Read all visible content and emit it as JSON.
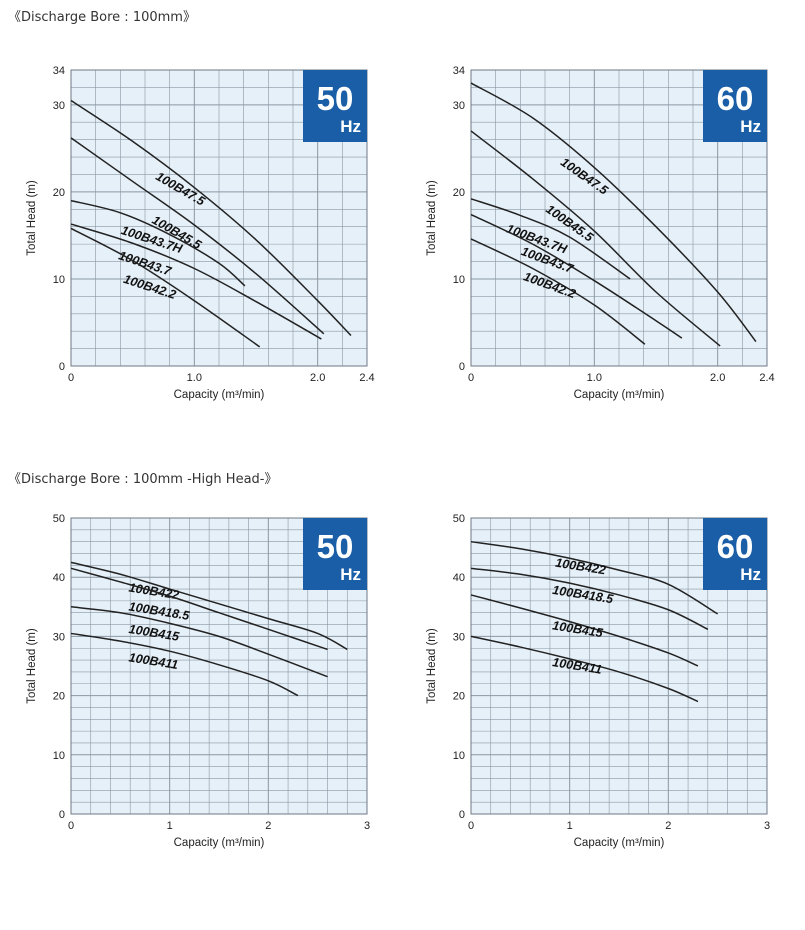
{
  "sections": [
    {
      "title": "《Discharge Bore : 100mm》"
    },
    {
      "title": "《Discharge Bore : 100mm -High Head-》"
    }
  ],
  "colors": {
    "plot_bg": "#e6f0f8",
    "grid": "#8a97a3",
    "badge": "#1a5ea8",
    "curve": "#222222"
  },
  "chart_data": [
    {
      "type": "line",
      "badge": {
        "number": "50",
        "unit": "Hz"
      },
      "xlabel": "Capacity (m³/min)",
      "ylabel": "Total Head (m)",
      "xlim": [
        0,
        2.4
      ],
      "ylim": [
        0,
        34
      ],
      "x_ticks": [
        "0",
        "1.0",
        "2.0",
        "2.4"
      ],
      "x_tick_values": [
        0,
        1.0,
        2.0,
        2.4
      ],
      "y_ticks": [
        "0",
        "10",
        "20",
        "30",
        "34"
      ],
      "y_tick_values": [
        0,
        10,
        20,
        30,
        34
      ],
      "grid": true,
      "x_minor": 0.2,
      "y_minor": 2,
      "series": [
        {
          "name": "100B47.5",
          "points": [
            [
              0,
              30.5
            ],
            [
              0.5,
              25.8
            ],
            [
              1.0,
              20.5
            ],
            [
              1.5,
              14.5
            ],
            [
              2.0,
              7.5
            ],
            [
              2.27,
              3.5
            ]
          ],
          "label_at": [
            0.68,
            21.5
          ],
          "label_rot": 30
        },
        {
          "name": "100B45.5",
          "points": [
            [
              0,
              26.2
            ],
            [
              0.5,
              21.2
            ],
            [
              1.0,
              16.2
            ],
            [
              1.5,
              10.6
            ],
            [
              2.05,
              3.7
            ]
          ],
          "label_at": [
            0.65,
            16.5
          ],
          "label_rot": 30
        },
        {
          "name": "100B43.7H",
          "points": [
            [
              0,
              19.0
            ],
            [
              0.4,
              17.6
            ],
            [
              0.8,
              15.1
            ],
            [
              1.2,
              11.8
            ],
            [
              1.41,
              9.2
            ]
          ],
          "label_at": [
            0.4,
            15.2
          ],
          "label_rot": 18
        },
        {
          "name": "100B43.7",
          "points": [
            [
              0,
              16.3
            ],
            [
              0.5,
              14.1
            ],
            [
              1.0,
              11.2
            ],
            [
              1.5,
              7.4
            ],
            [
              2.03,
              3.1
            ]
          ],
          "label_at": [
            0.38,
            12.3
          ],
          "label_rot": 18
        },
        {
          "name": "100B42.2",
          "points": [
            [
              0,
              15.8
            ],
            [
              0.5,
              12.1
            ],
            [
              1.0,
              7.5
            ],
            [
              1.53,
              2.2
            ]
          ],
          "label_at": [
            0.42,
            9.6
          ],
          "label_rot": 18
        }
      ]
    },
    {
      "type": "line",
      "badge": {
        "number": "60",
        "unit": "Hz"
      },
      "xlabel": "Capacity (m³/min)",
      "ylabel": "Total Head (m)",
      "xlim": [
        0,
        2.4
      ],
      "ylim": [
        0,
        34
      ],
      "x_ticks": [
        "0",
        "1.0",
        "2.0",
        "2.4"
      ],
      "x_tick_values": [
        0,
        1.0,
        2.0,
        2.4
      ],
      "y_ticks": [
        "0",
        "10",
        "20",
        "30",
        "34"
      ],
      "y_tick_values": [
        0,
        10,
        20,
        30,
        34
      ],
      "grid": true,
      "x_minor": 0.2,
      "y_minor": 2,
      "series": [
        {
          "name": "100B47.5",
          "points": [
            [
              0,
              32.5
            ],
            [
              0.5,
              28.5
            ],
            [
              1.0,
              22.8
            ],
            [
              1.5,
              16.0
            ],
            [
              2.0,
              8.5
            ],
            [
              2.31,
              2.8
            ]
          ],
          "label_at": [
            0.72,
            23.2
          ],
          "label_rot": 35
        },
        {
          "name": "100B45.5",
          "points": [
            [
              0,
              27.0
            ],
            [
              0.5,
              21.5
            ],
            [
              1.0,
              15.5
            ],
            [
              1.5,
              8.5
            ],
            [
              2.02,
              2.3
            ]
          ],
          "label_at": [
            0.6,
            17.8
          ],
          "label_rot": 35
        },
        {
          "name": "100B43.7H",
          "points": [
            [
              0,
              19.2
            ],
            [
              0.4,
              17.3
            ],
            [
              0.8,
              14.8
            ],
            [
              1.29,
              10.0
            ]
          ],
          "label_at": [
            0.28,
            15.4
          ],
          "label_rot": 20
        },
        {
          "name": "100B43.7",
          "points": [
            [
              0,
              17.4
            ],
            [
              0.5,
              14.0
            ],
            [
              1.0,
              9.8
            ],
            [
              1.5,
              5.2
            ],
            [
              1.71,
              3.2
            ]
          ],
          "label_at": [
            0.4,
            12.8
          ],
          "label_rot": 20
        },
        {
          "name": "100B42.2",
          "points": [
            [
              0,
              14.6
            ],
            [
              0.5,
              11.2
            ],
            [
              1.0,
              7.0
            ],
            [
              1.41,
              2.5
            ]
          ],
          "label_at": [
            0.42,
            9.9
          ],
          "label_rot": 20
        }
      ]
    },
    {
      "type": "line",
      "badge": {
        "number": "50",
        "unit": "Hz"
      },
      "xlabel": "Capacity (m³/min)",
      "ylabel": "Total Head (m)",
      "xlim": [
        0,
        3
      ],
      "ylim": [
        0,
        50
      ],
      "x_ticks": [
        "0",
        "1",
        "2",
        "3"
      ],
      "x_tick_values": [
        0,
        1,
        2,
        3
      ],
      "y_ticks": [
        "0",
        "10",
        "20",
        "30",
        "40",
        "50"
      ],
      "y_tick_values": [
        0,
        10,
        20,
        30,
        40,
        50
      ],
      "grid": true,
      "x_minor": 0.2,
      "y_minor": 2,
      "series": [
        {
          "name": "100B422",
          "points": [
            [
              0,
              42.5
            ],
            [
              0.5,
              40.5
            ],
            [
              1.0,
              38.0
            ],
            [
              1.5,
              35.5
            ],
            [
              2.0,
              33.0
            ],
            [
              2.5,
              30.5
            ],
            [
              2.8,
              27.8
            ]
          ],
          "label_at": [
            0.58,
            37.6
          ],
          "label_rot": 9
        },
        {
          "name": "100B418.5",
          "points": [
            [
              0,
              41.5
            ],
            [
              0.5,
              39.2
            ],
            [
              1.0,
              36.8
            ],
            [
              1.5,
              34.0
            ],
            [
              2.0,
              31.2
            ],
            [
              2.6,
              27.8
            ]
          ],
          "label_at": [
            0.58,
            34.4
          ],
          "label_rot": 9
        },
        {
          "name": "100B415",
          "points": [
            [
              0,
              35.0
            ],
            [
              0.5,
              34.0
            ],
            [
              1.0,
              32.2
            ],
            [
              1.5,
              30.0
            ],
            [
              2.0,
              27.0
            ],
            [
              2.6,
              23.2
            ]
          ],
          "label_at": [
            0.58,
            30.6
          ],
          "label_rot": 9
        },
        {
          "name": "100B411",
          "points": [
            [
              0,
              30.5
            ],
            [
              0.5,
              29.2
            ],
            [
              1.0,
              27.5
            ],
            [
              1.5,
              25.2
            ],
            [
              2.0,
              22.5
            ],
            [
              2.3,
              20.0
            ]
          ],
          "label_at": [
            0.58,
            25.8
          ],
          "label_rot": 9
        }
      ]
    },
    {
      "type": "line",
      "badge": {
        "number": "60",
        "unit": "Hz"
      },
      "xlabel": "Capacity (m³/min)",
      "ylabel": "Total Head (m)",
      "xlim": [
        0,
        3
      ],
      "ylim": [
        0,
        50
      ],
      "x_ticks": [
        "0",
        "1",
        "2",
        "3"
      ],
      "x_tick_values": [
        0,
        1,
        2,
        3
      ],
      "y_ticks": [
        "0",
        "10",
        "20",
        "30",
        "40",
        "50"
      ],
      "y_tick_values": [
        0,
        10,
        20,
        30,
        40,
        50
      ],
      "grid": true,
      "x_minor": 0.2,
      "y_minor": 2,
      "series": [
        {
          "name": "100B422",
          "points": [
            [
              0,
              46.0
            ],
            [
              0.5,
              44.8
            ],
            [
              1.0,
              43.2
            ],
            [
              1.5,
              41.2
            ],
            [
              2.0,
              38.8
            ],
            [
              2.5,
              33.8
            ]
          ],
          "label_at": [
            0.85,
            41.8
          ],
          "label_rot": 9
        },
        {
          "name": "100B418.5",
          "points": [
            [
              0,
              41.5
            ],
            [
              0.5,
              40.5
            ],
            [
              1.0,
              39.0
            ],
            [
              1.5,
              37.0
            ],
            [
              2.0,
              34.5
            ],
            [
              2.4,
              31.2
            ]
          ],
          "label_at": [
            0.82,
            37.2
          ],
          "label_rot": 9
        },
        {
          "name": "100B415",
          "points": [
            [
              0,
              37.0
            ],
            [
              0.5,
              34.8
            ],
            [
              1.0,
              32.5
            ],
            [
              1.5,
              30.0
            ],
            [
              2.0,
              27.2
            ],
            [
              2.3,
              25.0
            ]
          ],
          "label_at": [
            0.82,
            31.2
          ],
          "label_rot": 9
        },
        {
          "name": "100B411",
          "points": [
            [
              0,
              30.0
            ],
            [
              0.5,
              28.2
            ],
            [
              1.0,
              26.2
            ],
            [
              1.5,
              24.0
            ],
            [
              2.0,
              21.2
            ],
            [
              2.3,
              19.0
            ]
          ],
          "label_at": [
            0.82,
            25.0
          ],
          "label_rot": 9
        }
      ]
    }
  ]
}
